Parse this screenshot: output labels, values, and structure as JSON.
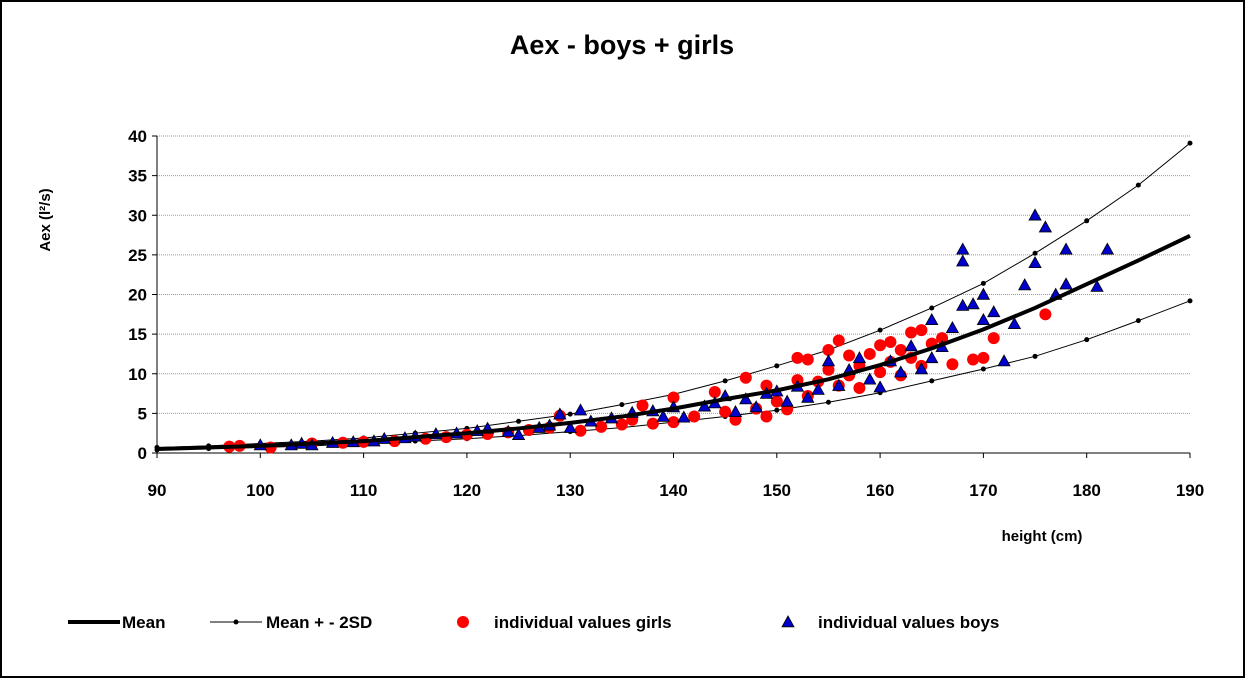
{
  "chart_data": {
    "type": "line-scatter",
    "title": "Aex -  boys + girls",
    "x_label": "height (cm)",
    "y_label": "Aex (l²/s)",
    "xlim": [
      90,
      190
    ],
    "xticks": [
      90,
      100,
      110,
      120,
      130,
      140,
      150,
      160,
      170,
      180,
      190
    ],
    "ylim": [
      0,
      40
    ],
    "yticks": [
      0,
      5,
      10,
      15,
      20,
      25,
      30,
      35,
      40
    ],
    "grid": true,
    "reference_x": [
      90,
      95,
      100,
      105,
      110,
      115,
      120,
      125,
      130,
      135,
      140,
      145,
      150,
      155,
      160,
      165,
      170,
      175,
      180,
      185,
      190
    ],
    "mean": {
      "name": "Mean",
      "color": "#000000",
      "values": [
        0.5,
        0.7,
        0.9,
        1.2,
        1.5,
        2.0,
        2.5,
        3.1,
        3.8,
        4.6,
        5.6,
        6.8,
        7.9,
        9.3,
        11.1,
        13.2,
        15.6,
        18.3,
        21.3,
        24.3,
        27.4
      ]
    },
    "sd": {
      "name": "Mean + - 2SD",
      "color": "#000000",
      "upper": [
        0.7,
        0.9,
        1.2,
        1.5,
        1.9,
        2.5,
        3.1,
        4.0,
        4.9,
        6.1,
        7.4,
        9.1,
        11.0,
        13.0,
        15.5,
        18.3,
        21.4,
        25.2,
        29.3,
        33.8,
        39.1
      ],
      "lower": [
        0.4,
        0.55,
        0.7,
        0.9,
        1.2,
        1.5,
        1.8,
        2.2,
        2.7,
        3.2,
        3.9,
        4.6,
        5.4,
        6.4,
        7.6,
        9.1,
        10.6,
        12.2,
        14.3,
        16.7,
        19.2
      ]
    },
    "girls": {
      "name": "individual values girls",
      "color": "#ff0000",
      "x": [
        97,
        98,
        101,
        105,
        108,
        110,
        113,
        116,
        118,
        120,
        122,
        124,
        126,
        128,
        129,
        131,
        133,
        135,
        136,
        137,
        138,
        140,
        140,
        142,
        144,
        145,
        146,
        147,
        148,
        149,
        149,
        150,
        151,
        152,
        152,
        153,
        153,
        154,
        155,
        155,
        156,
        156,
        157,
        157,
        158,
        158,
        159,
        160,
        160,
        161,
        161,
        162,
        162,
        163,
        163,
        164,
        164,
        165,
        166,
        167,
        169,
        170,
        171,
        176
      ],
      "y": [
        0.8,
        0.9,
        0.7,
        1.2,
        1.3,
        1.4,
        1.5,
        1.8,
        2.0,
        2.3,
        2.4,
        2.6,
        2.9,
        3.2,
        4.7,
        2.8,
        3.3,
        3.6,
        4.2,
        6.0,
        3.7,
        3.9,
        7.0,
        4.6,
        7.7,
        5.2,
        4.2,
        9.5,
        5.6,
        4.6,
        8.5,
        6.5,
        5.5,
        12.0,
        9.2,
        11.8,
        7.2,
        9.0,
        13.0,
        10.5,
        14.2,
        8.5,
        12.3,
        9.8,
        11.0,
        8.2,
        12.5,
        13.6,
        10.2,
        14.0,
        11.5,
        13.0,
        9.8,
        15.2,
        12.0,
        15.5,
        11.0,
        13.8,
        14.5,
        11.2,
        11.8,
        12.0,
        14.5,
        17.5
      ]
    },
    "boys": {
      "name": "individual values boys",
      "color": "#0000cc",
      "x": [
        100,
        103,
        104,
        105,
        107,
        109,
        111,
        112,
        114,
        115,
        117,
        119,
        121,
        122,
        124,
        125,
        127,
        128,
        129,
        130,
        131,
        132,
        134,
        136,
        138,
        139,
        140,
        141,
        143,
        144,
        145,
        146,
        147,
        148,
        149,
        150,
        151,
        152,
        153,
        154,
        155,
        156,
        157,
        158,
        159,
        160,
        161,
        162,
        163,
        164,
        165,
        165,
        166,
        167,
        168,
        168,
        168,
        169,
        170,
        170,
        171,
        172,
        173,
        174,
        175,
        175,
        176,
        177,
        178,
        178,
        181,
        182
      ],
      "y": [
        1.0,
        1.0,
        1.2,
        1.0,
        1.3,
        1.4,
        1.5,
        1.8,
        1.9,
        2.1,
        2.4,
        2.5,
        2.8,
        3.1,
        2.7,
        2.3,
        3.2,
        3.5,
        4.9,
        3.2,
        5.4,
        4.0,
        4.4,
        5.1,
        5.3,
        4.6,
        5.8,
        4.5,
        5.9,
        6.3,
        7.2,
        5.2,
        6.8,
        5.8,
        7.5,
        7.8,
        6.5,
        8.4,
        7.0,
        8.0,
        11.6,
        8.5,
        10.5,
        12.0,
        9.3,
        8.3,
        11.6,
        10.2,
        13.5,
        10.6,
        16.8,
        12.0,
        13.4,
        15.8,
        25.7,
        24.2,
        18.6,
        18.8,
        20.0,
        16.8,
        17.8,
        11.6,
        16.3,
        21.2,
        30.0,
        24.0,
        28.5,
        20.0,
        25.7,
        21.3,
        21.0,
        25.7
      ]
    }
  }
}
